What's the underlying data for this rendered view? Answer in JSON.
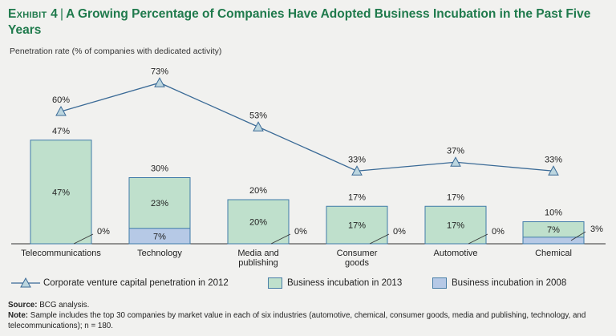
{
  "header": {
    "exhibit_label": "Exhibit 4",
    "title": "A Growing Percentage of Companies Have Adopted Business Incubation in the Past Five Years"
  },
  "colors": {
    "green_fill": "#bfe0cc",
    "blue_fill": "#b6c9e6",
    "bar_stroke": "#3f7aa8",
    "line": "#3a6a96",
    "marker_fill": "#bcd6df",
    "title_green": "#1f7a4c"
  },
  "chart_data": {
    "type": "bar",
    "ylabel": "Penetration rate (% of companies with dedicated activity)",
    "ylim": [
      0,
      100
    ],
    "categories": [
      "Telecommunications",
      "Technology",
      "Media and publishing",
      "Consumer goods",
      "Automotive",
      "Chemical"
    ],
    "category_lines": [
      [
        "Telecommunications"
      ],
      [
        "Technology"
      ],
      [
        "Media and",
        "publishing"
      ],
      [
        "Consumer",
        "goods"
      ],
      [
        "Automotive"
      ],
      [
        "Chemical"
      ]
    ],
    "series": [
      {
        "name": "Corporate venture capital penetration in 2012",
        "kind": "line",
        "values": [
          60,
          73,
          53,
          33,
          37,
          33
        ],
        "labels": [
          "60%",
          "73%",
          "53%",
          "33%",
          "37%",
          "33%"
        ]
      },
      {
        "name": "Business incubation in 2013",
        "kind": "bar",
        "values": [
          47,
          30,
          20,
          17,
          17,
          10
        ],
        "labels": [
          "47%",
          "30%",
          "20%",
          "17%",
          "17%",
          "10%"
        ]
      },
      {
        "name": "Business incubation in 2008",
        "kind": "bar",
        "values": [
          0,
          7,
          0,
          0,
          0,
          3
        ],
        "labels": [
          "0%",
          "7%",
          "0%",
          "0%",
          "0%",
          "3%"
        ]
      }
    ],
    "difference_labels": [
      "47%",
      "23%",
      "20%",
      "17%",
      "17%",
      "7%"
    ]
  },
  "legend": {
    "line_label": "Corporate venture capital penetration in 2012",
    "green_label": "Business incubation in 2013",
    "blue_label": "Business incubation in 2008"
  },
  "footer": {
    "source_label": "Source:",
    "source_text": "BCG analysis.",
    "note_label": "Note:",
    "note_text": "Sample includes the top 30 companies by market value in each of six industries (automotive, chemical, consumer goods, media and publishing, technology, and telecommunications); n = 180."
  }
}
